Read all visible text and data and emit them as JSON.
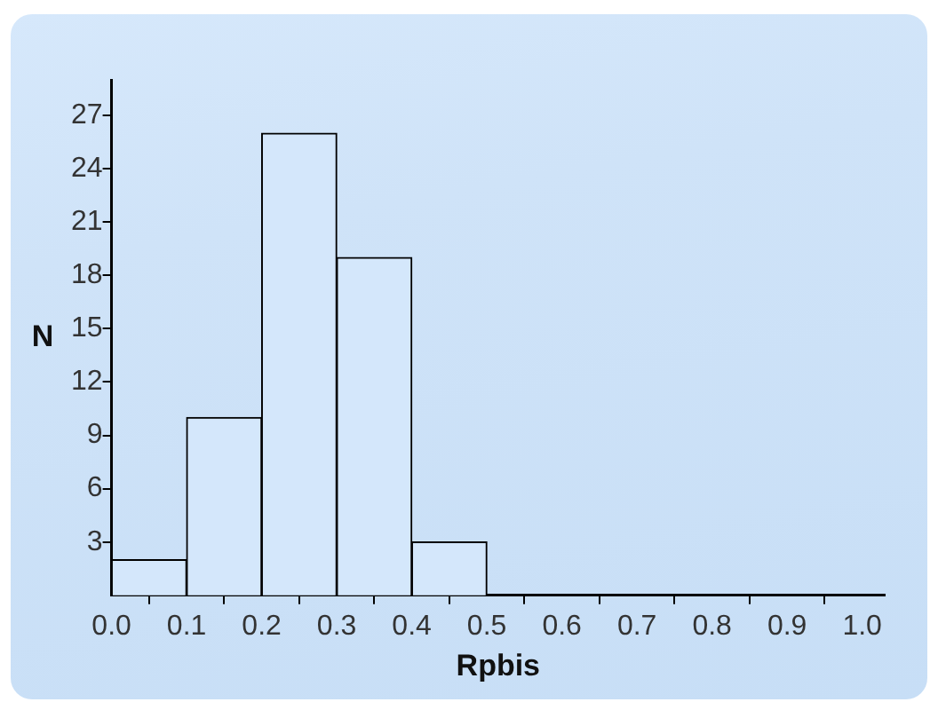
{
  "chart_data": {
    "type": "histogram",
    "xlabel": "Rpbis",
    "ylabel": "N",
    "bins": [
      0,
      0.1,
      0.2,
      0.3,
      0.4,
      0.5,
      0.6,
      0.7,
      0.8,
      0.9,
      1.0
    ],
    "values": [
      2,
      10,
      26,
      19,
      3,
      0,
      0,
      0,
      0,
      0
    ],
    "color": "#d4e7fb",
    "xlim": [
      0,
      1.03
    ],
    "xticks": [
      {
        "value": 0,
        "label": "0.0"
      },
      0.1,
      0.2,
      0.3,
      0.4,
      0.5,
      0.6,
      0.7,
      0.8,
      0.9,
      {
        "value": 1,
        "label": "1.0"
      }
    ],
    "ylim": [
      0,
      29
    ],
    "yticks": [
      3,
      6,
      9,
      12,
      15,
      18,
      21,
      24,
      27
    ],
    "grid": false,
    "legend": false
  }
}
